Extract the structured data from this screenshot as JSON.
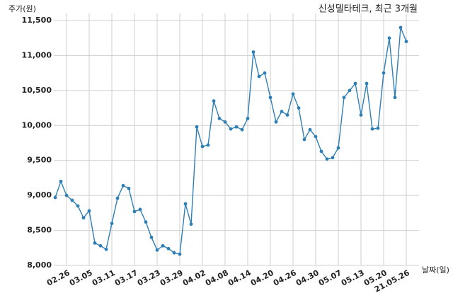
{
  "chart_data": {
    "type": "line",
    "title": "신성델타테크, 최근 3개월",
    "y_label": "주가(원)",
    "x_label": "날짜(일)",
    "categories": [
      null,
      null,
      "02.26",
      null,
      null,
      null,
      "03.05",
      null,
      null,
      null,
      "03.11",
      null,
      null,
      null,
      "03.17",
      null,
      null,
      null,
      "03.23",
      null,
      null,
      null,
      "03.29",
      null,
      null,
      null,
      "04.02",
      null,
      null,
      null,
      "04.08",
      null,
      null,
      null,
      "04.14",
      null,
      null,
      null,
      "04.20",
      null,
      null,
      null,
      "04.26",
      null,
      null,
      null,
      "04.30",
      null,
      null,
      null,
      "05.07",
      null,
      null,
      null,
      "05.13",
      null,
      null,
      null,
      "05.20",
      null,
      null,
      null,
      "21.05.26"
    ],
    "series": [
      {
        "name": "신성델타테크",
        "color": "#2f7fb4",
        "values": [
          8970,
          9200,
          9000,
          8930,
          8850,
          8680,
          8780,
          8320,
          8280,
          8230,
          8600,
          8960,
          9140,
          9100,
          8770,
          8800,
          8620,
          8400,
          8220,
          8280,
          8240,
          8180,
          8160,
          8880,
          8590,
          9980,
          9700,
          9720,
          10350,
          10100,
          10050,
          9950,
          9980,
          9940,
          10100,
          11050,
          10700,
          10750,
          10400,
          10050,
          10200,
          10150,
          10450,
          10250,
          9800,
          9940,
          9840,
          9630,
          9520,
          9540,
          9680,
          10400,
          10500,
          10600,
          10150,
          10600,
          9950,
          9960,
          10750,
          11250,
          10400,
          11400,
          11200
        ]
      }
    ],
    "ylim": [
      8000,
      11500
    ],
    "yticks": [
      {
        "value": 8000,
        "label": "8,000"
      },
      {
        "value": 8500,
        "label": "8,500"
      },
      {
        "value": 9000,
        "label": "9,000"
      },
      {
        "value": 9500,
        "label": "9,500"
      },
      {
        "value": 10000,
        "label": "10,000"
      },
      {
        "value": 10500,
        "label": "10,500"
      },
      {
        "value": 11000,
        "label": "11,000"
      },
      {
        "value": 11500,
        "label": "11,500"
      }
    ],
    "grid": true
  }
}
